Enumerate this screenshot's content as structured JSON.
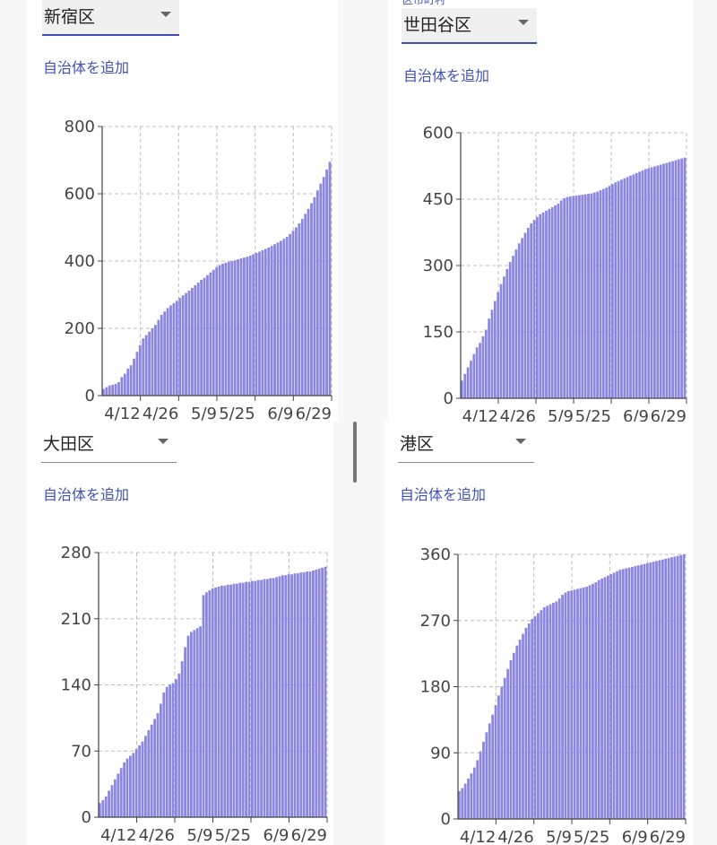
{
  "add_municipality_label": "自治体を追加",
  "field_label_top_right": "区市町村",
  "panels": [
    {
      "select_value": "新宿区",
      "select_style": "filled"
    },
    {
      "select_value": "世田谷区",
      "select_style": "filled"
    },
    {
      "select_value": "大田区",
      "select_style": "plain"
    },
    {
      "select_value": "港区",
      "select_style": "plain"
    }
  ],
  "colors": {
    "bar": "#8b86e0",
    "accent": "#3f51b5",
    "grid": "#bdbdbd"
  },
  "chart_data": [
    {
      "type": "bar",
      "title": "",
      "xlabel": "",
      "ylabel": "",
      "x_tick_labels": [
        "4/12",
        "4/26",
        "5/9",
        "5/25",
        "6/9",
        "6/29"
      ],
      "yticks": [
        0,
        200,
        400,
        600,
        800
      ],
      "ylim": [
        0,
        800
      ],
      "grid": true,
      "values": [
        20,
        25,
        30,
        32,
        35,
        40,
        55,
        65,
        80,
        90,
        110,
        130,
        150,
        170,
        180,
        190,
        200,
        210,
        225,
        240,
        250,
        260,
        268,
        275,
        282,
        290,
        298,
        305,
        312,
        320,
        328,
        336,
        344,
        350,
        358,
        366,
        374,
        382,
        388,
        392,
        395,
        398,
        400,
        402,
        405,
        408,
        410,
        413,
        416,
        420,
        424,
        428,
        432,
        436,
        440,
        445,
        450,
        455,
        460,
        466,
        472,
        480,
        490,
        500,
        512,
        525,
        540,
        555,
        572,
        590,
        610,
        630,
        650,
        672,
        695
      ]
    },
    {
      "type": "bar",
      "title": "",
      "xlabel": "",
      "ylabel": "",
      "x_tick_labels": [
        "4/12",
        "4/26",
        "5/9",
        "5/25",
        "6/9",
        "6/29"
      ],
      "yticks": [
        0,
        150,
        300,
        450,
        600
      ],
      "ylim": [
        0,
        600
      ],
      "grid": true,
      "values": [
        40,
        55,
        70,
        85,
        100,
        115,
        125,
        140,
        155,
        180,
        200,
        220,
        240,
        258,
        275,
        292,
        308,
        322,
        336,
        350,
        362,
        374,
        385,
        395,
        403,
        410,
        416,
        420,
        424,
        428,
        432,
        436,
        440,
        447,
        452,
        455,
        456,
        457,
        458,
        459,
        460,
        461,
        462,
        463,
        465,
        467,
        470,
        473,
        476,
        480,
        484,
        488,
        491,
        494,
        497,
        500,
        503,
        506,
        509,
        512,
        515,
        518,
        520,
        522,
        524,
        526,
        528,
        530,
        532,
        534,
        536,
        538,
        540,
        542,
        544
      ]
    },
    {
      "type": "bar",
      "title": "",
      "xlabel": "",
      "ylabel": "",
      "x_tick_labels": [
        "4/12",
        "4/26",
        "5/9",
        "5/25",
        "6/9",
        "6/29"
      ],
      "yticks": [
        0,
        70,
        140,
        210,
        280
      ],
      "ylim": [
        0,
        280
      ],
      "grid": true,
      "values": [
        15,
        18,
        22,
        28,
        34,
        40,
        46,
        52,
        58,
        62,
        65,
        68,
        72,
        76,
        80,
        86,
        92,
        98,
        104,
        110,
        120,
        132,
        138,
        140,
        142,
        146,
        152,
        165,
        180,
        192,
        196,
        198,
        200,
        202,
        235,
        238,
        240,
        242,
        243,
        244,
        245,
        245,
        246,
        246,
        247,
        247,
        248,
        248,
        249,
        249,
        250,
        250,
        251,
        251,
        252,
        252,
        253,
        253,
        254,
        255,
        256,
        256,
        257,
        257,
        258,
        258,
        259,
        259,
        260,
        260,
        261,
        262,
        263,
        264,
        265
      ]
    },
    {
      "type": "bar",
      "title": "",
      "xlabel": "",
      "ylabel": "",
      "x_tick_labels": [
        "4/12",
        "4/26",
        "5/9",
        "5/25",
        "6/9",
        "6/29"
      ],
      "yticks": [
        0,
        90,
        180,
        270,
        360
      ],
      "ylim": [
        0,
        360
      ],
      "grid": true,
      "values": [
        38,
        42,
        48,
        55,
        62,
        70,
        80,
        92,
        105,
        118,
        130,
        142,
        155,
        168,
        180,
        192,
        204,
        216,
        226,
        236,
        244,
        252,
        260,
        266,
        272,
        276,
        280,
        284,
        288,
        290,
        292,
        294,
        296,
        300,
        305,
        308,
        310,
        311,
        312,
        313,
        314,
        315,
        316,
        318,
        320,
        322,
        325,
        327,
        329,
        331,
        333,
        335,
        337,
        339,
        340,
        341,
        342,
        343,
        344,
        345,
        346,
        347,
        348,
        349,
        350,
        351,
        352,
        353,
        354,
        355,
        356,
        357,
        358,
        359,
        360
      ]
    }
  ]
}
